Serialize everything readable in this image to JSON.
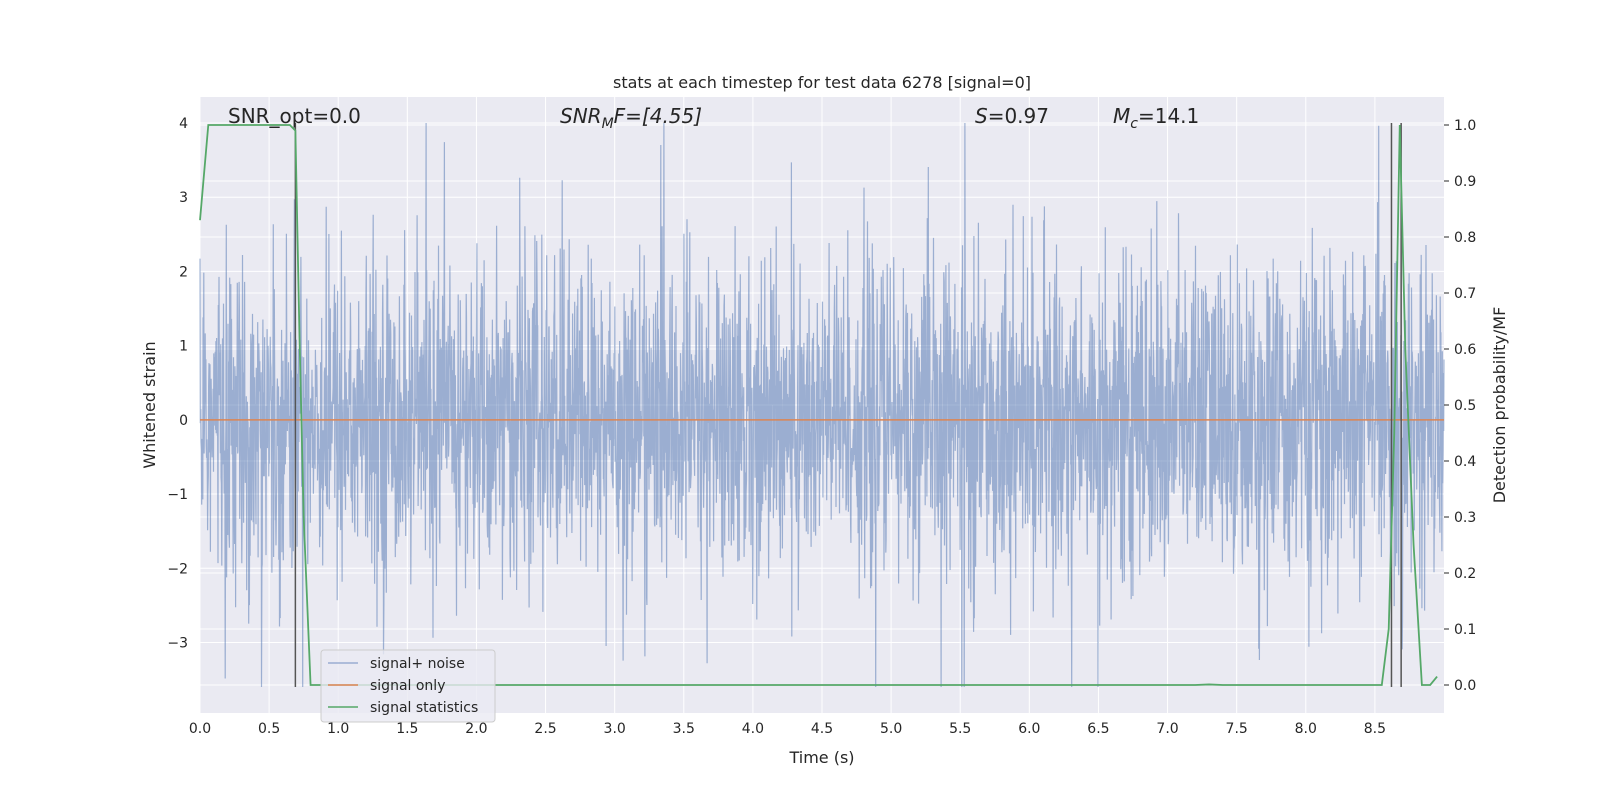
{
  "chart_data": {
    "type": "line",
    "title": "stats at each timestep for test data 6278 [signal=0]",
    "xlabel": "Time (s)",
    "ylabel_left": "Whitened strain",
    "ylabel_right": "Detection probability/MF",
    "xlim": [
      0.0,
      9.0
    ],
    "ylim_left": [
      -3.95,
      4.35
    ],
    "ylim_right": [
      -0.05,
      1.05
    ],
    "x_ticks": [
      "0.0",
      "0.5",
      "1.0",
      "1.5",
      "2.0",
      "2.5",
      "3.0",
      "3.5",
      "4.0",
      "4.5",
      "5.0",
      "5.5",
      "6.0",
      "6.5",
      "7.0",
      "7.5",
      "8.0",
      "8.5"
    ],
    "y_ticks_left": [
      "−3",
      "−2",
      "−1",
      "0",
      "1",
      "2",
      "3",
      "4"
    ],
    "y_ticks_right": [
      "0.0",
      "0.1",
      "0.2",
      "0.3",
      "0.4",
      "0.5",
      "0.6",
      "0.7",
      "0.8",
      "0.9",
      "1.0"
    ],
    "grid": true,
    "annotations": {
      "snr_opt": "SNR_opt=0.0",
      "snr_mf_main": "SNR",
      "snr_mf_sub": "M",
      "snr_mf_rest": "F=[4.55]",
      "s_main": "S",
      "s_rest": "=0.97",
      "mc_main": "M",
      "mc_sub": "c",
      "mc_rest": "=14.1"
    },
    "legend": {
      "placement": "lower-left",
      "entries": [
        "signal+ noise",
        "signal only",
        "signal statistics"
      ]
    },
    "series": [
      {
        "name": "signal+ noise",
        "axis": "left",
        "color": "#4c72b0",
        "opacity": 0.5,
        "description_range": [
          -3.6,
          4.0
        ]
      },
      {
        "name": "signal only",
        "axis": "left",
        "color": "#dd8452",
        "x": [
          0.0,
          9.0
        ],
        "y": [
          0.0,
          0.0
        ]
      },
      {
        "name": "signal statistics",
        "axis": "right",
        "color": "#55a868",
        "x": [
          0.0,
          0.06,
          0.1,
          0.2,
          0.4,
          0.65,
          0.69,
          0.72,
          0.75,
          0.8,
          1.0,
          2.0,
          4.0,
          6.0,
          7.2,
          7.3,
          7.4,
          8.0,
          8.55,
          8.6,
          8.64,
          8.68,
          8.72,
          8.78,
          8.84,
          8.9,
          8.95
        ],
        "y": [
          0.83,
          1.0,
          1.0,
          1.0,
          1.0,
          1.0,
          0.99,
          0.62,
          0.3,
          0.0,
          0.0,
          0.0,
          0.0,
          0.0,
          0.0,
          0.001,
          0.0,
          0.0,
          0.0,
          0.1,
          0.45,
          1.0,
          0.6,
          0.25,
          0.0,
          0.0,
          0.015
        ]
      }
    ],
    "vertical_lines": {
      "color": "#555555",
      "x": [
        0.69,
        8.62,
        8.69
      ],
      "y_bottom": -3.6,
      "y_top": 4.0
    }
  }
}
